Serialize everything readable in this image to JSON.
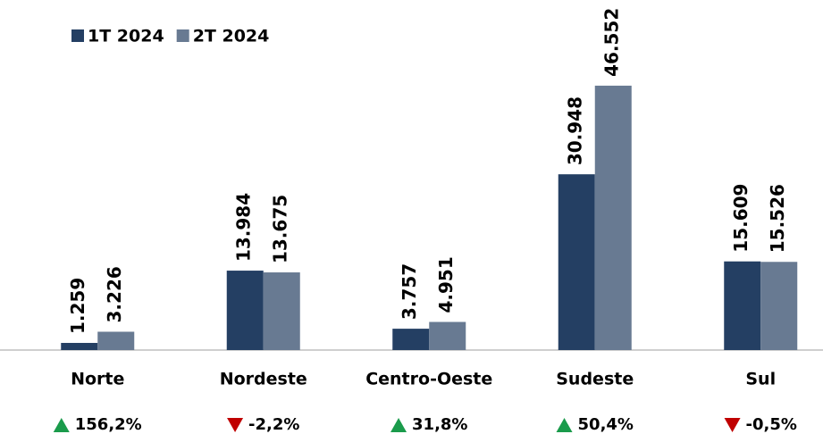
{
  "chart_data": {
    "type": "bar",
    "categories": [
      "Norte",
      "Nordeste",
      "Centro-Oeste",
      "Sudeste",
      "Sul"
    ],
    "series": [
      {
        "name": "1T 2024",
        "color": "#243f63",
        "values": [
          1259,
          13984,
          3757,
          30948,
          15609
        ],
        "value_labels": [
          "1.259",
          "13.984",
          "3.757",
          "30.948",
          "15.609"
        ]
      },
      {
        "name": "2T 2024",
        "color": "#687a92",
        "values": [
          3226,
          13675,
          4951,
          46552,
          15526
        ],
        "value_labels": [
          "3.226",
          "13.675",
          "4.951",
          "46.552",
          "15.526"
        ]
      }
    ],
    "changes": [
      156.2,
      -2.2,
      31.8,
      50.4,
      -0.5
    ],
    "change_labels": [
      "156,2%",
      "-2,2%",
      "31,8%",
      "50,4%",
      "-0,5%"
    ],
    "up_color": "#1a9b4b",
    "down_color": "#c00000",
    "ylim": [
      0,
      50000
    ]
  }
}
